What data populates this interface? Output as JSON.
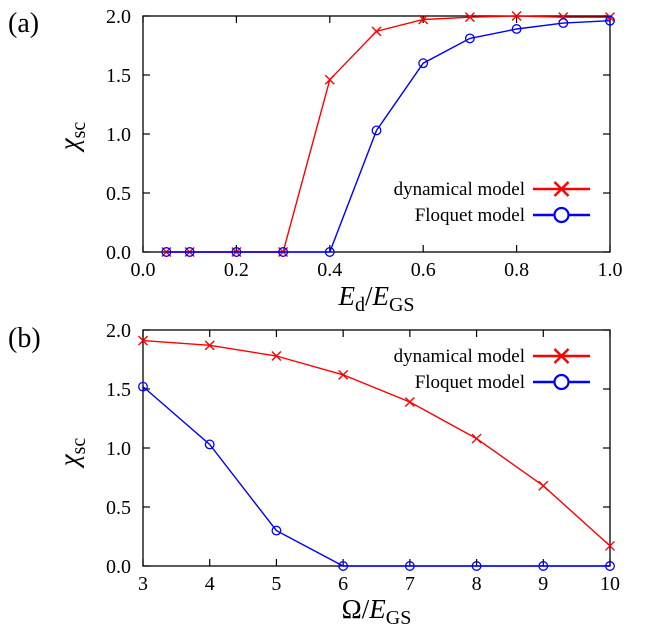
{
  "colors": {
    "dynamical": "#ff0000",
    "floquet": "#0000ff",
    "axis": "#000000"
  },
  "chart_data": [
    {
      "type": "line",
      "panel_label": "(a)",
      "xlabel": {
        "var": "E",
        "sub": "d",
        "sep": "/",
        "var2": "E",
        "sub2": "GS"
      },
      "ylabel": {
        "var": "χ",
        "sub": "sc"
      },
      "xlim": [
        0.0,
        1.0
      ],
      "ylim": [
        0.0,
        2.0
      ],
      "xticks": [
        "0.0",
        "0.2",
        "0.4",
        "0.6",
        "0.8",
        "1.0"
      ],
      "yticks": [
        "0.0",
        "0.5",
        "1.0",
        "1.5",
        "2.0"
      ],
      "legend_position": "center-right",
      "grid": false,
      "series": [
        {
          "name": "dynamical model",
          "marker": "x",
          "x": [
            0.05,
            0.1,
            0.2,
            0.3,
            0.4,
            0.5,
            0.6,
            0.7,
            0.8,
            0.9,
            1.0
          ],
          "y": [
            0.0,
            0.0,
            0.0,
            0.0,
            1.46,
            1.87,
            1.97,
            1.99,
            2.0,
            1.99,
            1.99
          ]
        },
        {
          "name": "Floquet model",
          "marker": "o",
          "x": [
            0.05,
            0.1,
            0.2,
            0.3,
            0.4,
            0.5,
            0.6,
            0.7,
            0.8,
            0.9,
            1.0
          ],
          "y": [
            0.0,
            0.0,
            0.0,
            0.0,
            0.0,
            1.03,
            1.6,
            1.81,
            1.89,
            1.94,
            1.96
          ]
        }
      ]
    },
    {
      "type": "line",
      "panel_label": "(b)",
      "xlabel": {
        "var": "Ω",
        "sub": "",
        "sep": "/",
        "var2": "E",
        "sub2": "GS"
      },
      "ylabel": {
        "var": "χ",
        "sub": "sc"
      },
      "xlim": [
        3,
        10
      ],
      "ylim": [
        0.0,
        2.0
      ],
      "xticks": [
        "3",
        "4",
        "5",
        "6",
        "7",
        "8",
        "9",
        "10"
      ],
      "yticks": [
        "0.0",
        "0.5",
        "1.0",
        "1.5",
        "2.0"
      ],
      "legend_position": "top-right",
      "grid": false,
      "series": [
        {
          "name": "dynamical model",
          "marker": "x",
          "x": [
            3,
            4,
            5,
            6,
            7,
            8,
            9,
            10
          ],
          "y": [
            1.91,
            1.87,
            1.78,
            1.62,
            1.39,
            1.08,
            0.68,
            0.17
          ]
        },
        {
          "name": "Floquet model",
          "marker": "o",
          "x": [
            3,
            4,
            5,
            6,
            7,
            8,
            9,
            10
          ],
          "y": [
            1.52,
            1.03,
            0.3,
            0.0,
            0.0,
            0.0,
            0.0,
            0.0
          ]
        }
      ]
    }
  ]
}
